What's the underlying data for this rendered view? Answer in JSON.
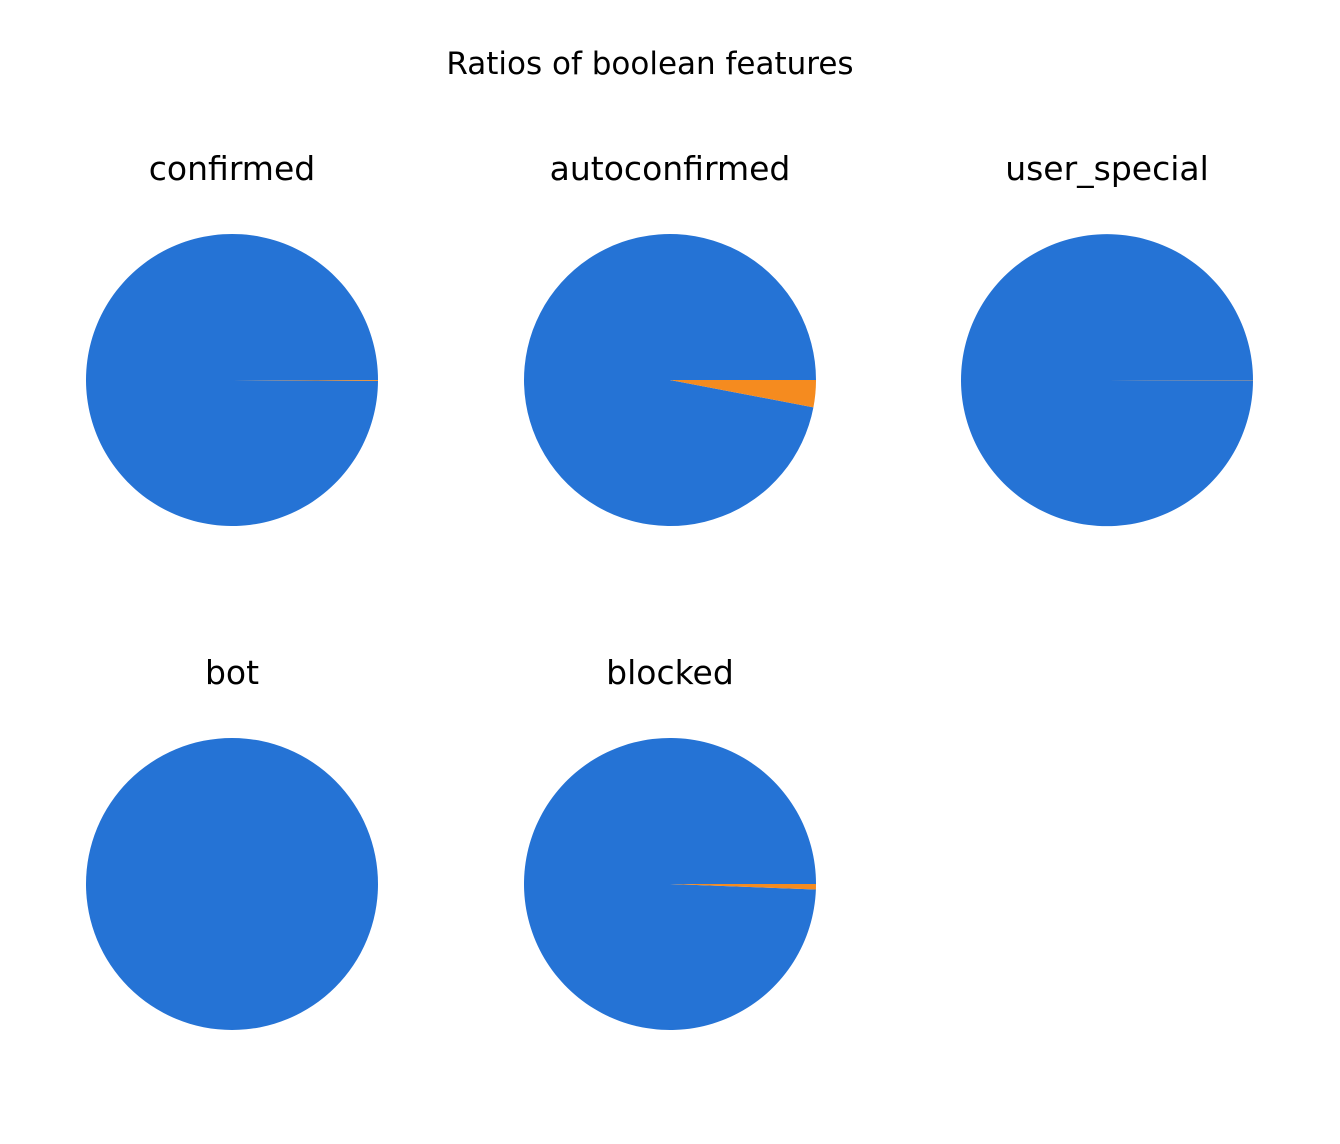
{
  "chart_data": {
    "type": "pie",
    "title": "Ratios of boolean features",
    "colors": {
      "false": "#2573d5",
      "true": "#f58b1f"
    },
    "panels": [
      {
        "name": "confirmed",
        "slices": [
          {
            "key": "false",
            "value": 0.999
          },
          {
            "key": "true",
            "value": 0.001
          }
        ]
      },
      {
        "name": "autoconfirmed",
        "slices": [
          {
            "key": "false",
            "value": 0.97
          },
          {
            "key": "true",
            "value": 0.03
          }
        ]
      },
      {
        "name": "user_special",
        "slices": [
          {
            "key": "false",
            "value": 0.9997
          },
          {
            "key": "true",
            "value": 0.0003
          }
        ]
      },
      {
        "name": "bot",
        "slices": [
          {
            "key": "false",
            "value": 1.0
          },
          {
            "key": "true",
            "value": 0.0
          }
        ]
      },
      {
        "name": "blocked",
        "slices": [
          {
            "key": "false",
            "value": 0.994
          },
          {
            "key": "true",
            "value": 0.006
          }
        ]
      }
    ]
  }
}
